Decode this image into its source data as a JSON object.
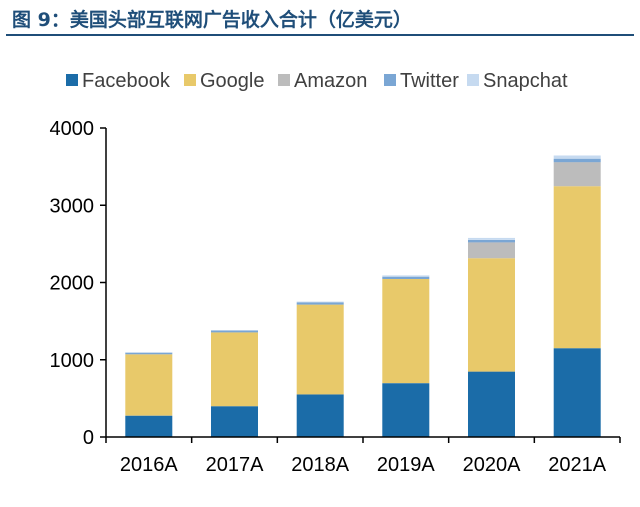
{
  "figure": {
    "title": "图 9：美国头部互联网广告收入合计（亿美元）"
  },
  "chart_data": {
    "type": "bar",
    "stacked": true,
    "categories": [
      "2016A",
      "2017A",
      "2018A",
      "2019A",
      "2020A",
      "2021A"
    ],
    "series": [
      {
        "name": "Facebook",
        "color": "#1b6ca8",
        "values": [
          276,
          399,
          551,
          697,
          846,
          1149
        ]
      },
      {
        "name": "Google",
        "color": "#e8c96a",
        "values": [
          794,
          955,
          1163,
          1348,
          1468,
          2097
        ]
      },
      {
        "name": "Amazon",
        "color": "#bcbcbc",
        "values": [
          0,
          0,
          0,
          0,
          206,
          312
        ]
      },
      {
        "name": "Twitter",
        "color": "#7aa6d4",
        "values": [
          22,
          23,
          27,
          30,
          32,
          45
        ]
      },
      {
        "name": "Snapchat",
        "color": "#c6daf0",
        "values": [
          4,
          8,
          12,
          17,
          25,
          41
        ]
      }
    ],
    "ylim": [
      0,
      4000
    ],
    "yticks": [
      0,
      1000,
      2000,
      3000,
      4000
    ],
    "xlabel": "",
    "ylabel": "",
    "grid": false,
    "legend_position": "top"
  }
}
